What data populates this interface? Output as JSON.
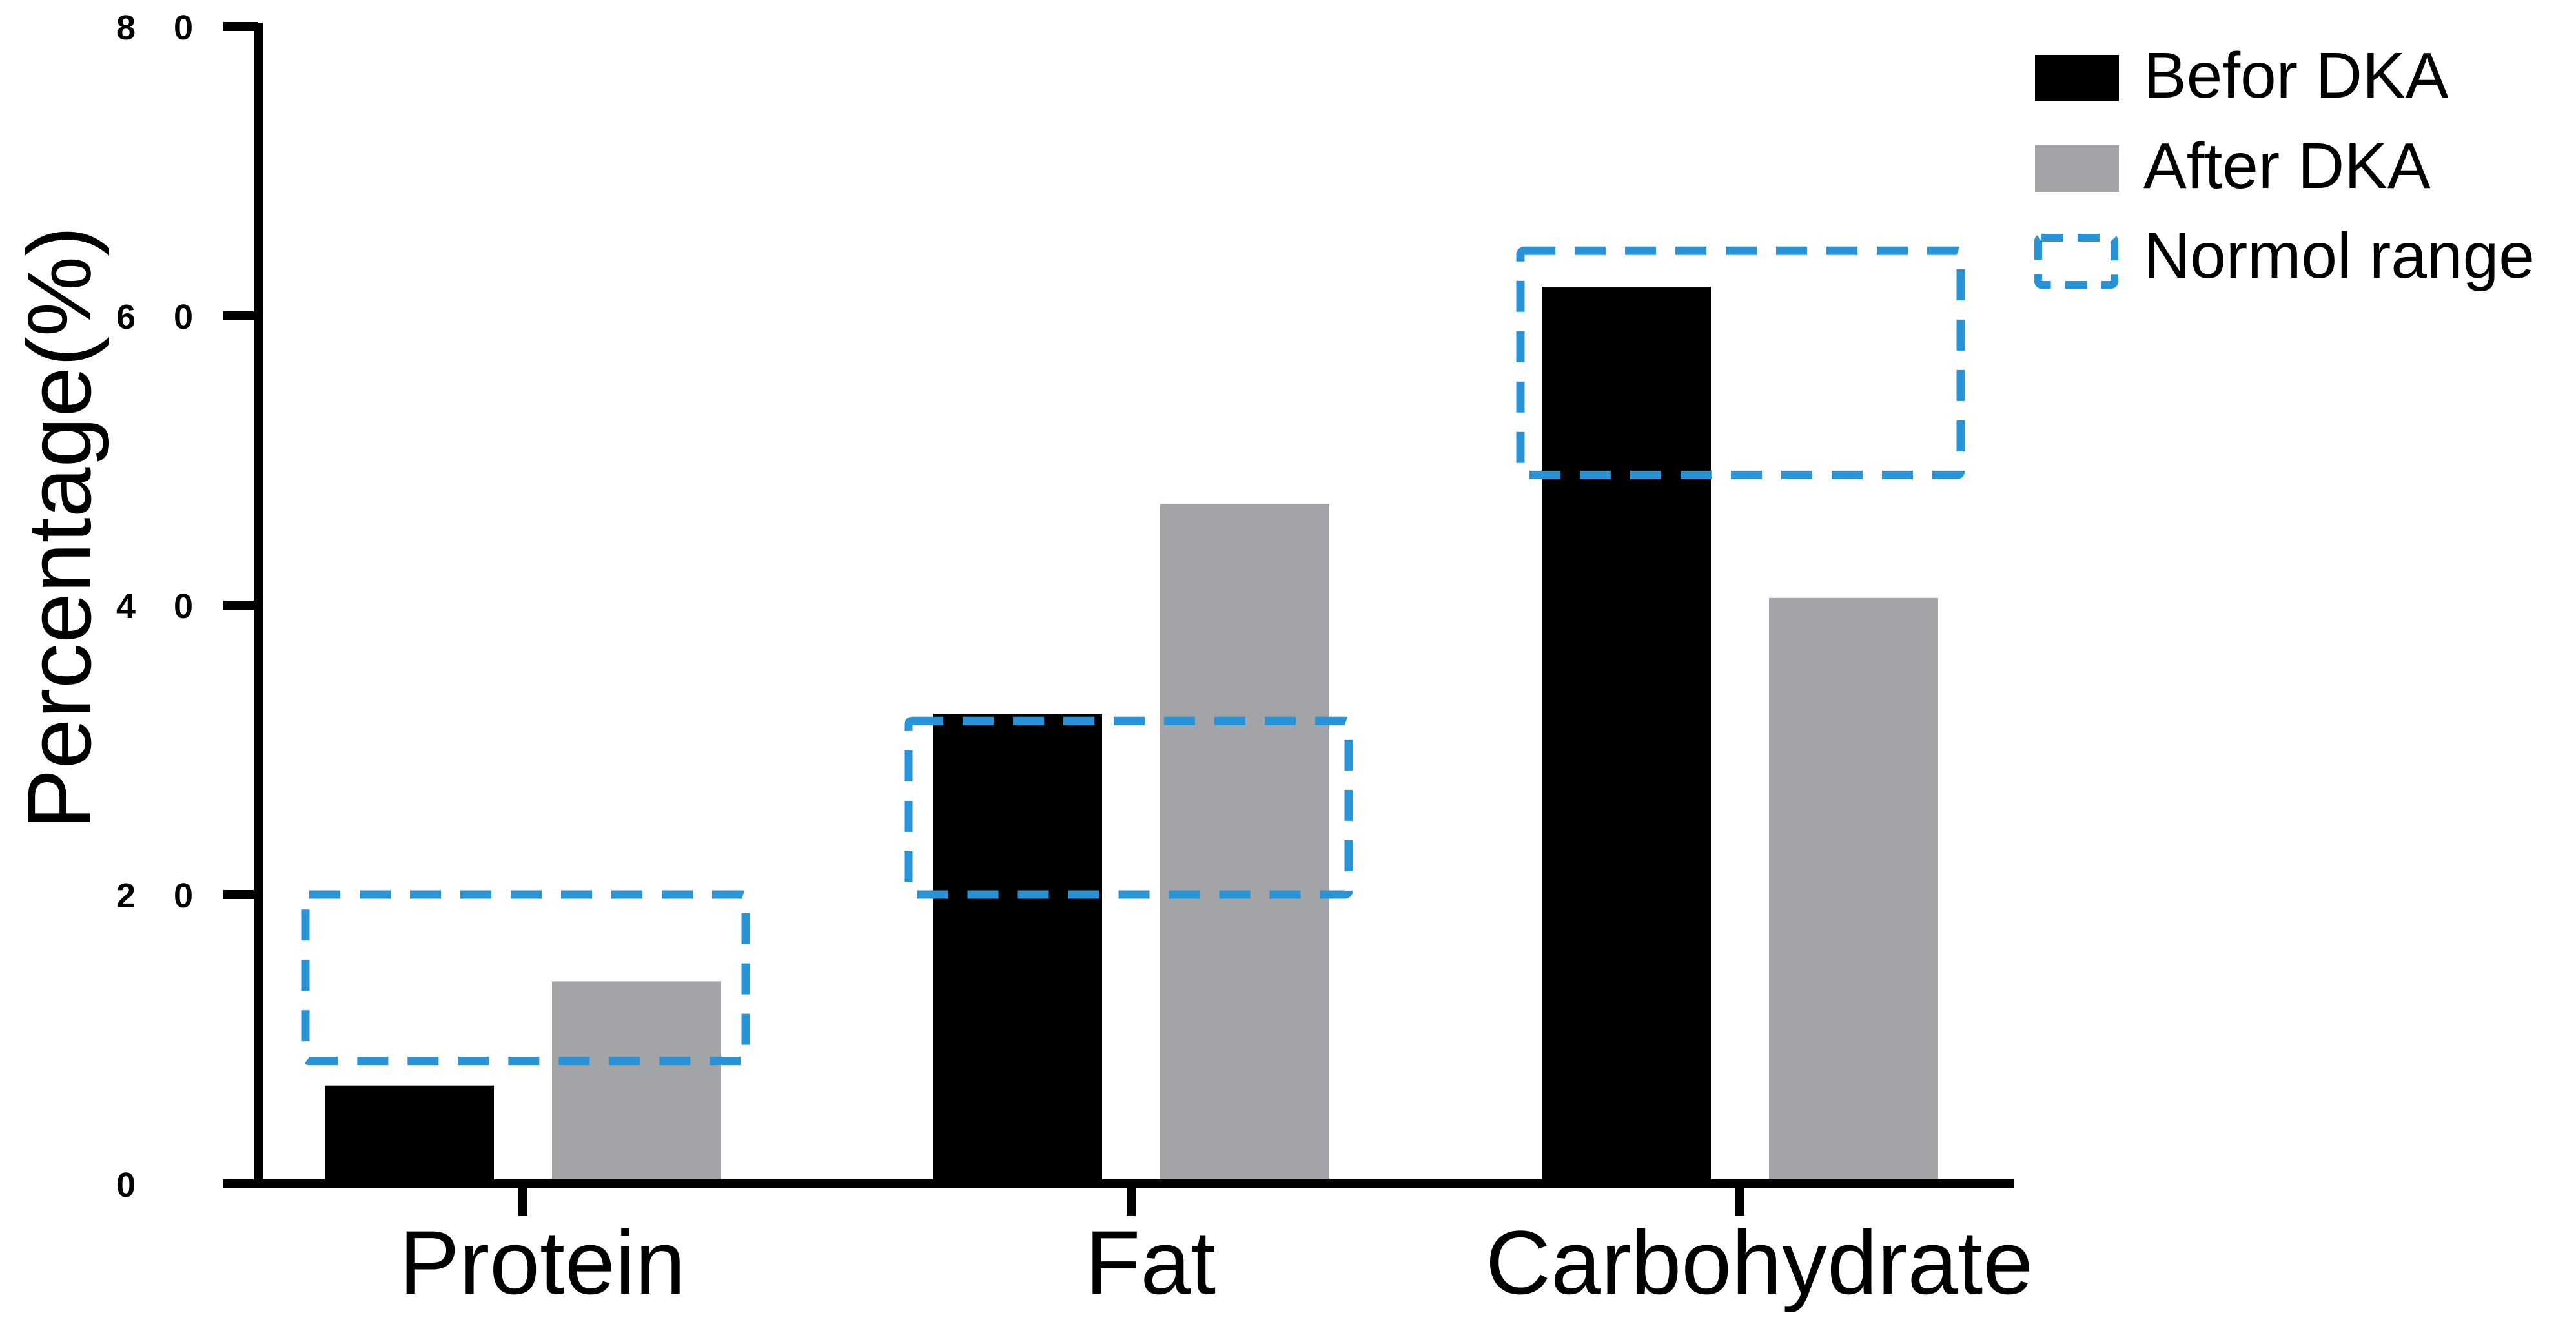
{
  "chart_data": {
    "type": "bar",
    "title": "",
    "xlabel": "",
    "ylabel": "Percentage(%)",
    "ylim": [
      0,
      80
    ],
    "yticks": [
      0,
      20,
      40,
      60,
      80
    ],
    "ytick_labels": [
      "0",
      "2 0",
      "4 0",
      "6 0",
      "8 0"
    ],
    "categories": [
      "Protein",
      "Fat",
      "Carbohydrate"
    ],
    "series": [
      {
        "name": "Befor DKA",
        "color": "#000000",
        "values": [
          6.8,
          32.5,
          62
        ]
      },
      {
        "name": "After DKA",
        "color": "#a3a4a7",
        "values": [
          14,
          47,
          40.5
        ]
      }
    ],
    "normal_range": {
      "name": "Normol range",
      "color": "#2a93d5",
      "ranges": [
        [
          8.5,
          20
        ],
        [
          20,
          32
        ],
        [
          49,
          64.5
        ]
      ]
    },
    "legend_position": "top-right"
  }
}
